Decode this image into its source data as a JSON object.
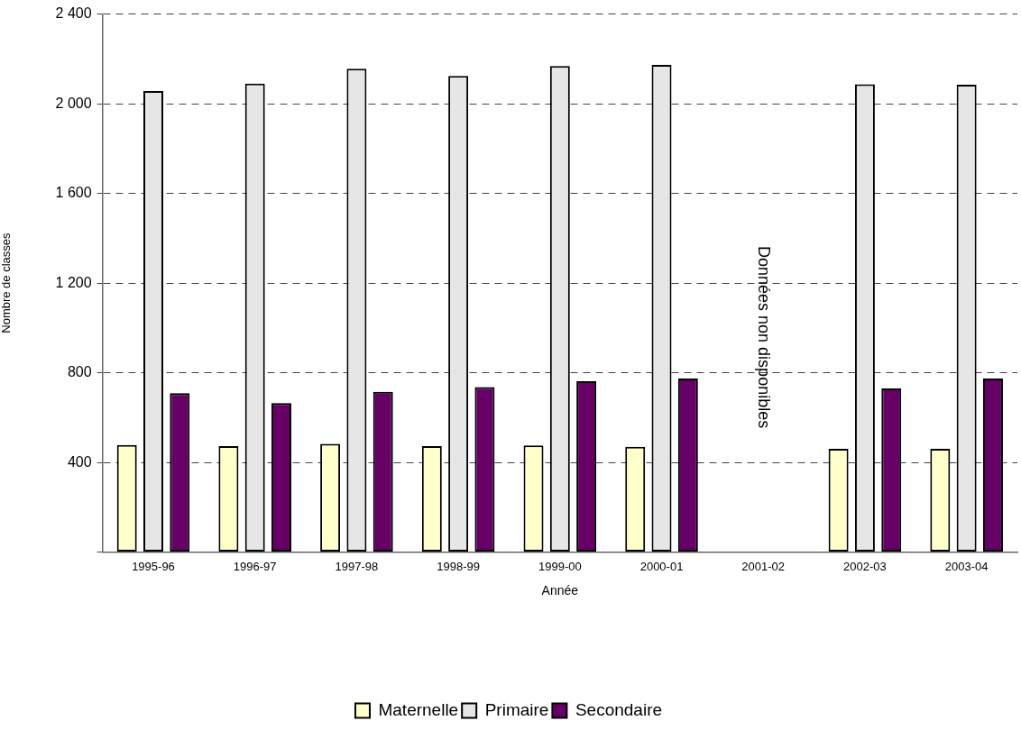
{
  "chart_data": {
    "type": "bar",
    "xlabel": "Année",
    "ylabel": "Nombre de classes",
    "categories": [
      "1995-96",
      "1996-97",
      "1997-98",
      "1998-99",
      "1999-00",
      "2000-01",
      "2001-02",
      "2002-03",
      "2003-04"
    ],
    "series": [
      {
        "name": "Maternelle",
        "color": "#ffffcc",
        "values": [
          478,
          473,
          483,
          473,
          476,
          470,
          null,
          461,
          461
        ]
      },
      {
        "name": "Primaire",
        "color": "#e6e6e6",
        "values": [
          2057,
          2090,
          2156,
          2124,
          2168,
          2173,
          null,
          2087,
          2085
        ]
      },
      {
        "name": "Secondaire",
        "color": "#660066",
        "values": [
          709,
          665,
          715,
          736,
          762,
          774,
          null,
          730,
          774
        ]
      }
    ],
    "ylim": [
      0,
      2400
    ],
    "yticks": [
      {
        "value": 0,
        "label": null
      },
      {
        "value": 400,
        "label": "400"
      },
      {
        "value": 800,
        "label": "800"
      },
      {
        "value": 1200,
        "label": "1 200"
      },
      {
        "value": 1600,
        "label": "1 600"
      },
      {
        "value": 2000,
        "label": "2 000"
      },
      {
        "value": 2400,
        "label": "2 400"
      }
    ],
    "grid": "y",
    "legend": "bottom",
    "annotations": [
      "Données non disponibles"
    ]
  }
}
